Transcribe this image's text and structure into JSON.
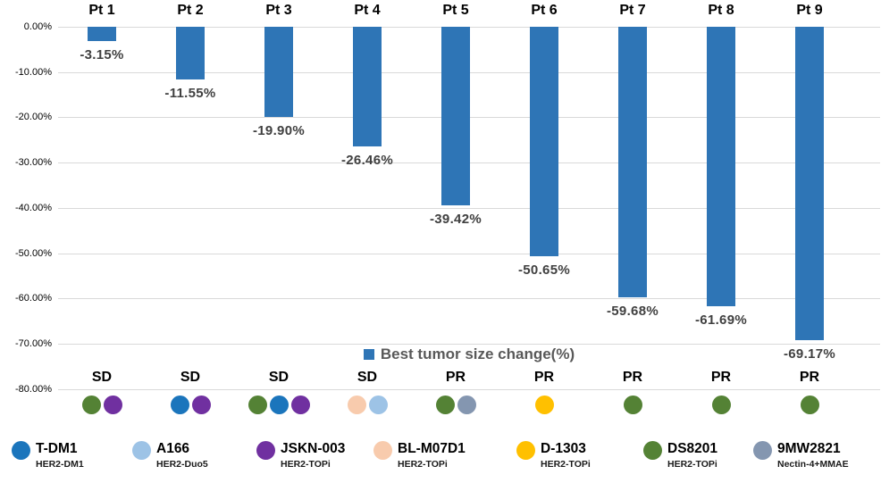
{
  "chart_data": {
    "type": "bar",
    "title": "",
    "series_label": "Best tumor size change(%)",
    "categories": [
      "Pt 1",
      "Pt 2",
      "Pt 3",
      "Pt 4",
      "Pt 5",
      "Pt 6",
      "Pt 7",
      "Pt 8",
      "Pt 9"
    ],
    "values": [
      -3.15,
      -11.55,
      -19.9,
      -26.46,
      -39.42,
      -50.65,
      -59.68,
      -61.69,
      -69.17
    ],
    "value_labels": [
      "-3.15%",
      "-11.55%",
      "-19.90%",
      "-26.46%",
      "-39.42%",
      "-50.65%",
      "-59.68%",
      "-61.69%",
      "-69.17%"
    ],
    "responses": [
      "SD",
      "SD",
      "SD",
      "SD",
      "PR",
      "PR",
      "PR",
      "PR",
      "PR"
    ],
    "prior_treatments": [
      [
        "DS8201",
        "JSKN-003"
      ],
      [
        "T-DM1",
        "JSKN-003"
      ],
      [
        "DS8201",
        "T-DM1",
        "JSKN-003"
      ],
      [
        "BL-M07D1",
        "A166"
      ],
      [
        "DS8201",
        "9MW2821"
      ],
      [
        "D-1303"
      ],
      [
        "DS8201"
      ],
      [
        "DS8201"
      ],
      [
        "DS8201"
      ]
    ],
    "y_ticks": [
      "0.00%",
      "-10.00%",
      "-20.00%",
      "-30.00%",
      "-40.00%",
      "-50.00%",
      "-60.00%",
      "-70.00%",
      "-80.00%"
    ],
    "ylim": [
      0,
      -80
    ],
    "grid": true,
    "bar_color": "#2E75B6",
    "legend_position": "bottom-center"
  },
  "legend": {
    "items": [
      {
        "name": "T-DM1",
        "target": "HER2-DM1",
        "color": "#1B75BC"
      },
      {
        "name": "A166",
        "target": "HER2-Duo5",
        "color": "#9DC3E6"
      },
      {
        "name": "JSKN-003",
        "target": "HER2-TOPi",
        "color": "#7030A0"
      },
      {
        "name": "BL-M07D1",
        "target": "HER2-TOPi",
        "color": "#F8CBAD"
      },
      {
        "name": "D-1303",
        "target": "HER2-TOPi",
        "color": "#FFC000"
      },
      {
        "name": "DS8201",
        "target": "HER2-TOPi",
        "color": "#548235"
      },
      {
        "name": "9MW2821",
        "target": "Nectin-4+MMAE",
        "color": "#8496B0"
      }
    ]
  }
}
